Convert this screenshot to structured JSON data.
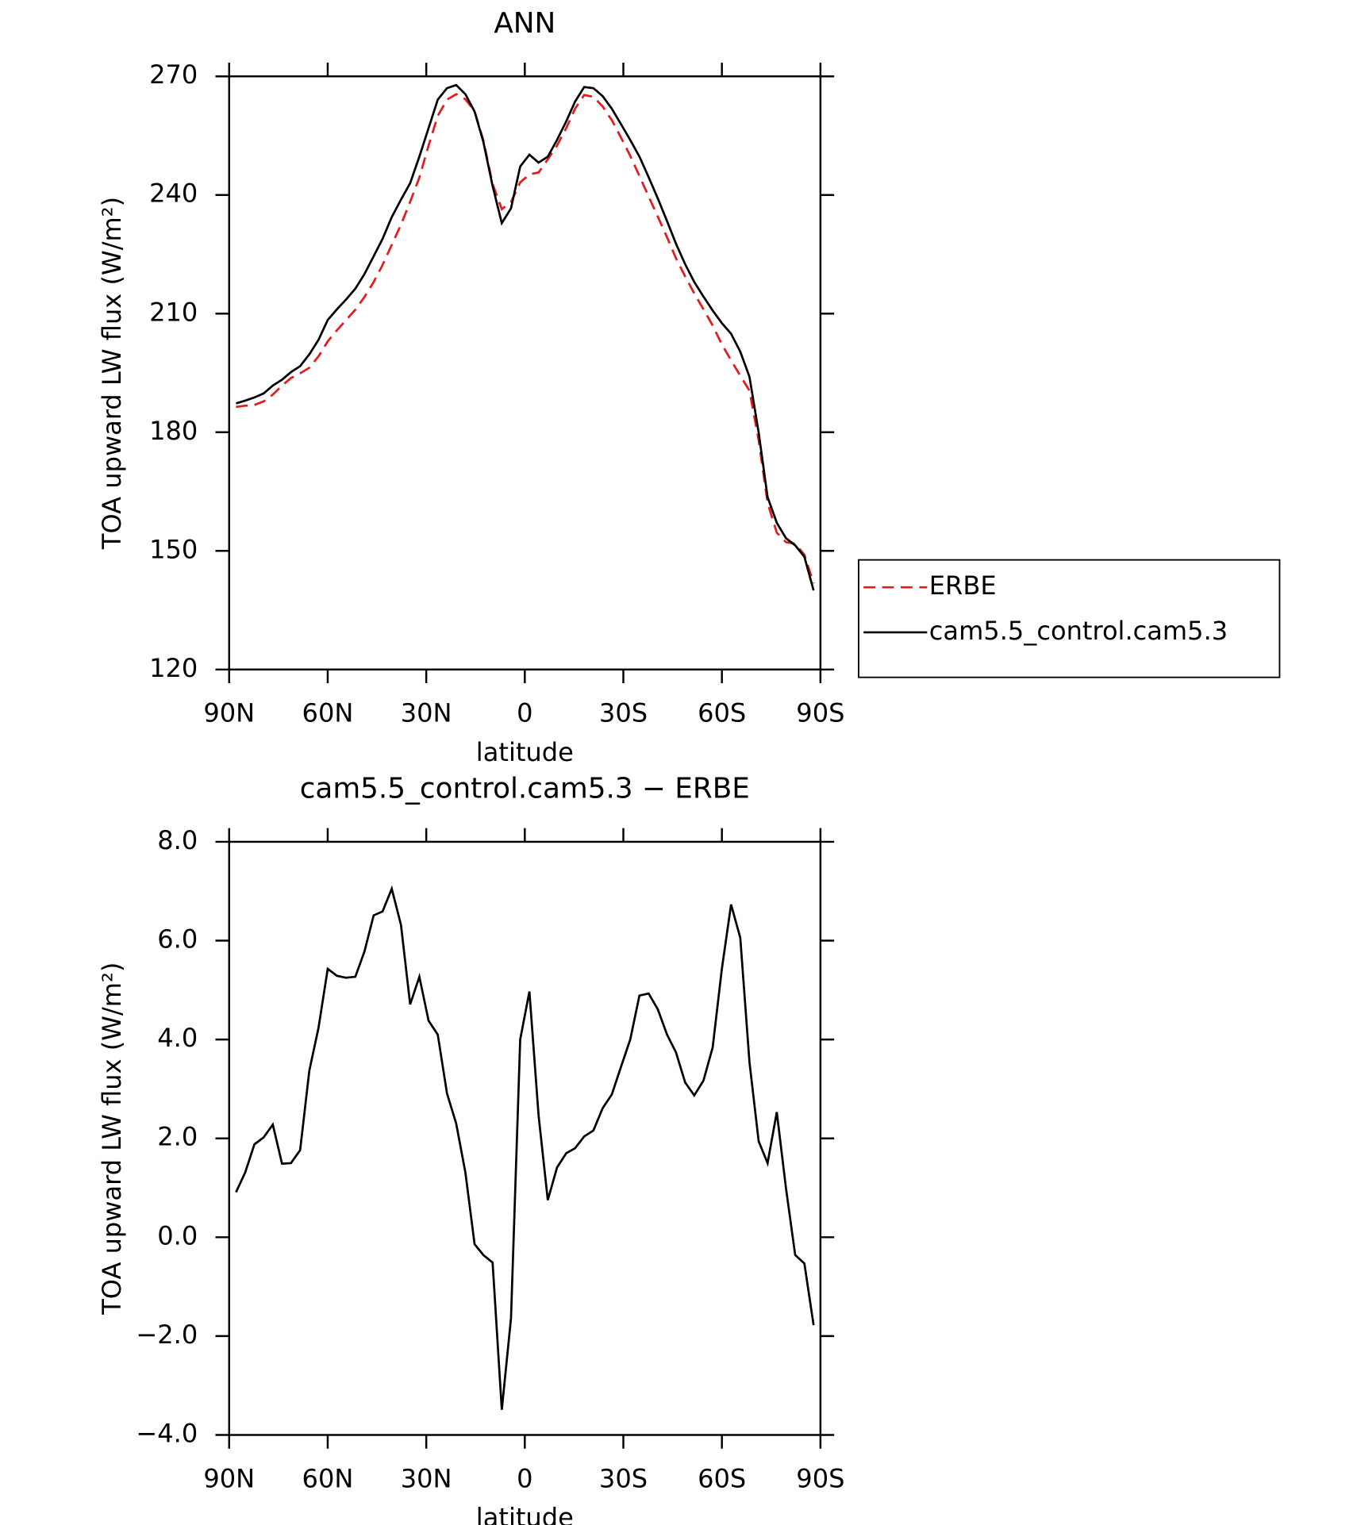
{
  "chart_data": [
    {
      "type": "line",
      "title": "ANN",
      "xlabel": "latitude",
      "ylabel": "TOA upward LW flux (W/m²)",
      "x": [
        87.9,
        85.1,
        82.3,
        79.5,
        76.7,
        73.9,
        71.2,
        68.4,
        65.6,
        62.8,
        60.0,
        57.2,
        54.4,
        51.6,
        48.8,
        46.0,
        43.3,
        40.5,
        37.7,
        34.9,
        32.1,
        29.3,
        26.5,
        23.7,
        20.9,
        18.1,
        15.3,
        12.6,
        9.8,
        7.0,
        4.2,
        1.4,
        -1.4,
        -4.2,
        -7.0,
        -9.8,
        -12.6,
        -15.3,
        -18.1,
        -20.9,
        -23.7,
        -26.5,
        -29.3,
        -32.1,
        -34.9,
        -37.7,
        -40.5,
        -43.3,
        -46.0,
        -48.8,
        -51.6,
        -54.4,
        -57.2,
        -60.0,
        -62.8,
        -65.6,
        -68.4,
        -71.2,
        -73.9,
        -76.7,
        -79.5,
        -82.3,
        -85.1,
        -87.9
      ],
      "series": [
        {
          "name": "ERBE",
          "color": "#e41a1c",
          "dashed": true,
          "values": [
            186.4,
            186.7,
            186.9,
            187.8,
            189.5,
            191.8,
            193.7,
            194.9,
            196.3,
            199.2,
            203.0,
            205.8,
            208.4,
            211.0,
            214.2,
            218.0,
            222.3,
            227.4,
            232.5,
            238.3,
            244.4,
            252.5,
            260.0,
            264.1,
            265.5,
            264.2,
            261.2,
            253.8,
            242.8,
            236.4,
            238.2,
            243.2,
            245.2,
            245.7,
            249.0,
            252.5,
            256.9,
            261.8,
            265.3,
            264.8,
            262.4,
            258.9,
            254.5,
            249.9,
            244.8,
            239.6,
            234.5,
            229.3,
            224.0,
            219.4,
            215.1,
            211.1,
            207.0,
            202.2,
            198.2,
            194.3,
            190.5,
            178.0,
            162.1,
            154.6,
            152.2,
            151.8,
            149.0,
            141.8
          ]
        },
        {
          "name": "cam5.5_control.cam5.3",
          "color": "#000000",
          "dashed": false,
          "values": [
            187.3,
            188.0,
            188.8,
            189.8,
            191.8,
            193.3,
            195.2,
            196.7,
            199.7,
            203.4,
            208.4,
            211.1,
            213.6,
            216.3,
            220.0,
            224.5,
            228.9,
            234.4,
            238.8,
            243.0,
            249.7,
            256.9,
            264.1,
            267.0,
            267.8,
            265.5,
            261.1,
            253.4,
            242.3,
            232.9,
            236.6,
            247.2,
            250.2,
            248.2,
            249.7,
            253.9,
            258.6,
            263.6,
            267.3,
            267.0,
            265.0,
            261.8,
            257.9,
            253.9,
            249.7,
            244.5,
            239.1,
            233.4,
            227.7,
            222.5,
            218.0,
            214.3,
            210.8,
            207.6,
            204.9,
            200.4,
            194.0,
            179.9,
            163.6,
            157.1,
            153.2,
            151.4,
            148.5,
            140.0
          ]
        }
      ],
      "xlim": [
        90,
        -90
      ],
      "xticks": [
        {
          "value": 90,
          "label": "90N"
        },
        {
          "value": 60,
          "label": "60N"
        },
        {
          "value": 30,
          "label": "30N"
        },
        0,
        {
          "value": -30,
          "label": "30S"
        },
        {
          "value": -60,
          "label": "60S"
        },
        {
          "value": -90,
          "label": "90S"
        }
      ],
      "ylim": [
        120,
        270
      ],
      "yticks": [
        120,
        150,
        180,
        210,
        240,
        270
      ],
      "legend": "outside-right"
    },
    {
      "type": "line",
      "title": "cam5.5_control.cam5.3 − ERBE",
      "xlabel": "latitude",
      "ylabel": "TOA upward LW flux (W/m²)",
      "x": [
        87.9,
        85.1,
        82.3,
        79.5,
        76.7,
        73.9,
        71.2,
        68.4,
        65.6,
        62.8,
        60.0,
        57.2,
        54.4,
        51.6,
        48.8,
        46.0,
        43.3,
        40.5,
        37.7,
        34.9,
        32.1,
        29.3,
        26.5,
        23.7,
        20.9,
        18.1,
        15.3,
        12.6,
        9.8,
        7.0,
        4.2,
        1.4,
        -1.4,
        -4.2,
        -7.0,
        -9.8,
        -12.6,
        -15.3,
        -18.1,
        -20.9,
        -23.7,
        -26.5,
        -29.3,
        -32.1,
        -34.9,
        -37.7,
        -40.5,
        -43.3,
        -46.0,
        -48.8,
        -51.6,
        -54.4,
        -57.2,
        -60.0,
        -62.8,
        -65.6,
        -68.4,
        -71.2,
        -73.9,
        -76.7,
        -79.5,
        -82.3,
        -85.1,
        -87.9
      ],
      "values": [
        0.91,
        1.31,
        1.88,
        2.02,
        2.28,
        1.49,
        1.5,
        1.76,
        3.37,
        4.24,
        5.43,
        5.29,
        5.25,
        5.27,
        5.78,
        6.51,
        6.59,
        7.05,
        6.32,
        4.71,
        5.27,
        4.38,
        4.1,
        2.91,
        2.3,
        1.31,
        -0.14,
        -0.36,
        -0.51,
        -3.49,
        -1.64,
        4.0,
        4.97,
        2.46,
        0.75,
        1.41,
        1.7,
        1.8,
        2.04,
        2.16,
        2.61,
        2.89,
        3.45,
        4.0,
        4.89,
        4.93,
        4.61,
        4.1,
        3.74,
        3.13,
        2.87,
        3.17,
        3.84,
        5.43,
        6.73,
        6.06,
        3.54,
        1.94,
        1.5,
        2.53,
        0.99,
        -0.36,
        -0.53,
        -1.78
      ],
      "color": "#000000",
      "xlim": [
        90,
        -90
      ],
      "xticks": [
        {
          "value": 90,
          "label": "90N"
        },
        {
          "value": 60,
          "label": "60N"
        },
        {
          "value": 30,
          "label": "30N"
        },
        0,
        {
          "value": -30,
          "label": "30S"
        },
        {
          "value": -60,
          "label": "60S"
        },
        {
          "value": -90,
          "label": "90S"
        }
      ],
      "ylim": [
        -4,
        8
      ],
      "yticks": [
        {
          "value": -4,
          "label": "−4.0"
        },
        {
          "value": -2,
          "label": "−2.0"
        },
        {
          "value": 0,
          "label": "0.0"
        },
        {
          "value": 2,
          "label": "2.0"
        },
        {
          "value": 4,
          "label": "4.0"
        },
        {
          "value": 6,
          "label": "6.0"
        },
        {
          "value": 8,
          "label": "8.0"
        }
      ]
    }
  ]
}
